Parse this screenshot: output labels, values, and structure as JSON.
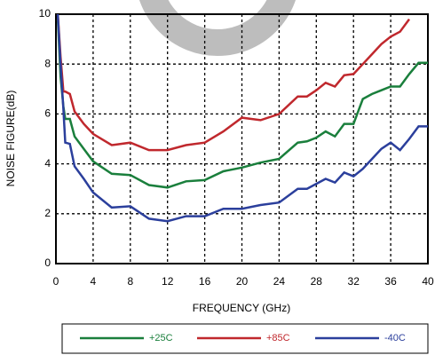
{
  "chart_data": {
    "type": "line",
    "x_label": "FREQUENCY (GHz)",
    "y_label": "NOISE FIGURE(dB)",
    "x": [
      0.2,
      0.5,
      0.8,
      1,
      1.5,
      2,
      3,
      4,
      6,
      8,
      10,
      12,
      14,
      16,
      18,
      20,
      22,
      24,
      26,
      27,
      28,
      29,
      30,
      31,
      32,
      33,
      34,
      35,
      36,
      37,
      38,
      39,
      40
    ],
    "series": [
      {
        "name": "+25C",
        "color": "#1a7f3c",
        "values": [
          9.8,
          7.5,
          6.3,
          5.8,
          5.8,
          5.1,
          4.6,
          4.1,
          3.6,
          3.55,
          3.15,
          3.05,
          3.3,
          3.35,
          3.7,
          3.85,
          4.05,
          4.2,
          4.85,
          4.9,
          5.05,
          5.3,
          5.1,
          5.6,
          5.6,
          6.6,
          6.8,
          6.95,
          7.1,
          7.1,
          7.6,
          8.05,
          8.05
        ]
      },
      {
        "name": "+85C",
        "color": "#c0282d",
        "values": [
          10,
          8.3,
          6.9,
          6.9,
          6.8,
          6.1,
          5.6,
          5.2,
          4.75,
          4.85,
          4.55,
          4.55,
          4.75,
          4.85,
          5.3,
          5.85,
          5.75,
          6.0,
          6.7,
          6.7,
          6.95,
          7.25,
          7.1,
          7.55,
          7.6,
          8.0,
          8.4,
          8.8,
          9.1,
          9.3,
          9.8,
          null,
          null
        ]
      },
      {
        "name": "-40C",
        "color": "#2b3f9c",
        "values": [
          10,
          8,
          6.2,
          4.85,
          4.8,
          3.9,
          3.4,
          2.85,
          2.25,
          2.3,
          1.8,
          1.7,
          1.9,
          1.9,
          2.2,
          2.2,
          2.35,
          2.45,
          3.0,
          3.0,
          3.2,
          3.4,
          3.25,
          3.65,
          3.5,
          3.8,
          4.2,
          4.6,
          4.85,
          4.55,
          5.0,
          5.5,
          5.5
        ]
      }
    ],
    "xlim": [
      0,
      40
    ],
    "xticks": [
      0,
      4,
      8,
      12,
      16,
      20,
      24,
      28,
      32,
      36,
      40
    ],
    "ylim": [
      0,
      10
    ],
    "yticks": [
      0,
      2,
      4,
      6,
      8,
      10
    ],
    "grid": true,
    "legend": "bottom"
  }
}
